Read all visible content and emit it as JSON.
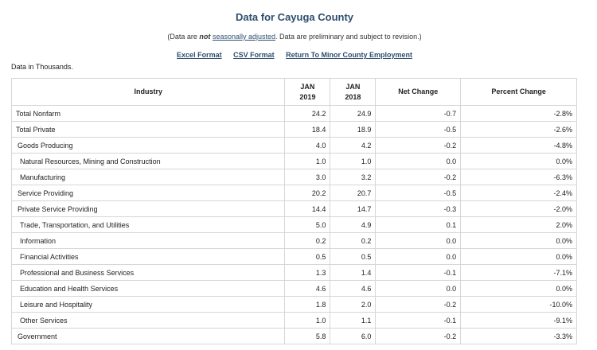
{
  "title": "Data for Cayuga County",
  "note": {
    "prefix": "(Data are ",
    "emph": "not",
    "link": "seasonally adjusted",
    "suffix": ". Data are preliminary and subject to revision.)"
  },
  "links": [
    "Excel Format",
    "CSV Format",
    "Return To Minor County Employment"
  ],
  "units": "Data in Thousands.",
  "columns": {
    "industry": "Industry",
    "col1_top": "JAN",
    "col1_bottom": "2019",
    "col2_top": "JAN",
    "col2_bottom": "2018",
    "net": "Net Change",
    "pct": "Percent Change"
  },
  "rows": [
    {
      "industry": "Total Nonfarm",
      "level": 0,
      "v2019": "24.2",
      "v2018": "24.9",
      "net": "-0.7",
      "pct": "-2.8%"
    },
    {
      "industry": "Total Private",
      "level": 0,
      "v2019": "18.4",
      "v2018": "18.9",
      "net": "-0.5",
      "pct": "-2.6%"
    },
    {
      "industry": "Goods Producing",
      "level": 1,
      "v2019": "4.0",
      "v2018": "4.2",
      "net": "-0.2",
      "pct": "-4.8%"
    },
    {
      "industry": "Natural Resources, Mining and Construction",
      "level": 2,
      "v2019": "1.0",
      "v2018": "1.0",
      "net": "0.0",
      "pct": "0.0%"
    },
    {
      "industry": "Manufacturing",
      "level": 2,
      "v2019": "3.0",
      "v2018": "3.2",
      "net": "-0.2",
      "pct": "-6.3%"
    },
    {
      "industry": "Service Providing",
      "level": 1,
      "v2019": "20.2",
      "v2018": "20.7",
      "net": "-0.5",
      "pct": "-2.4%"
    },
    {
      "industry": "Private Service Providing",
      "level": 1,
      "v2019": "14.4",
      "v2018": "14.7",
      "net": "-0.3",
      "pct": "-2.0%"
    },
    {
      "industry": "Trade, Transportation, and Utilities",
      "level": 2,
      "v2019": "5.0",
      "v2018": "4.9",
      "net": "0.1",
      "pct": "2.0%"
    },
    {
      "industry": "Information",
      "level": 2,
      "v2019": "0.2",
      "v2018": "0.2",
      "net": "0.0",
      "pct": "0.0%"
    },
    {
      "industry": "Financial Activities",
      "level": 2,
      "v2019": "0.5",
      "v2018": "0.5",
      "net": "0.0",
      "pct": "0.0%"
    },
    {
      "industry": "Professional and Business Services",
      "level": 2,
      "v2019": "1.3",
      "v2018": "1.4",
      "net": "-0.1",
      "pct": "-7.1%"
    },
    {
      "industry": "Education and Health Services",
      "level": 2,
      "v2019": "4.6",
      "v2018": "4.6",
      "net": "0.0",
      "pct": "0.0%"
    },
    {
      "industry": "Leisure and Hospitality",
      "level": 2,
      "v2019": "1.8",
      "v2018": "2.0",
      "net": "-0.2",
      "pct": "-10.0%"
    },
    {
      "industry": "Other Services",
      "level": 2,
      "v2019": "1.0",
      "v2018": "1.1",
      "net": "-0.1",
      "pct": "-9.1%"
    },
    {
      "industry": "Government",
      "level": 1,
      "v2019": "5.8",
      "v2018": "6.0",
      "net": "-0.2",
      "pct": "-3.3%"
    }
  ]
}
